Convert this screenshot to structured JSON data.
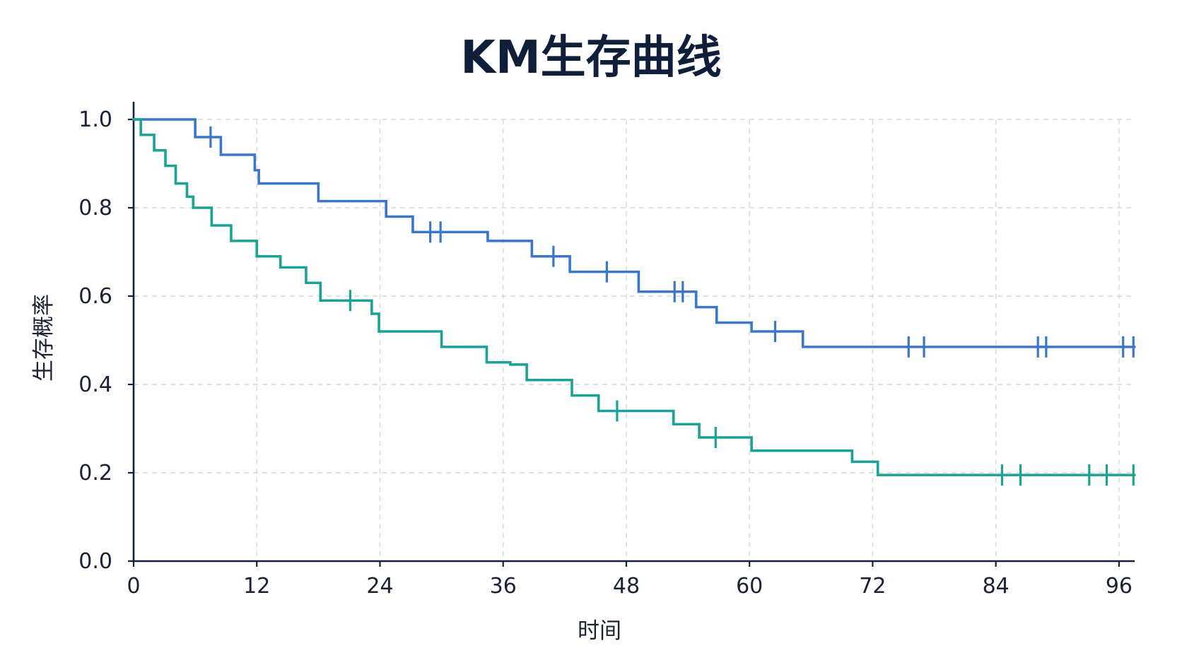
{
  "colors": {
    "title": "#0f1f3a",
    "axis": "#14213d",
    "grid": "#d7d9dd",
    "series_blue": "#3a76c9",
    "series_teal": "#1aa394"
  },
  "chart_data": {
    "type": "line",
    "title": "KM生存曲线",
    "xlabel": "时间",
    "ylabel": "生存概率",
    "xlim": [
      0,
      97.5
    ],
    "ylim": [
      0,
      1.0
    ],
    "x_ticks": [
      "0",
      "12",
      "24",
      "36",
      "48",
      "60",
      "72",
      "84",
      "96"
    ],
    "y_ticks": [
      "0.0",
      "0.2",
      "0.4",
      "0.6",
      "0.8",
      "1.0"
    ],
    "grid": true,
    "legend": "none",
    "series": [
      {
        "color": "#3a76c9",
        "steps": [
          [
            0,
            1.0
          ],
          [
            6,
            0.96
          ],
          [
            8.5,
            0.92
          ],
          [
            11.8,
            0.885
          ],
          [
            12.2,
            0.855
          ],
          [
            18,
            0.815
          ],
          [
            24.6,
            0.78
          ],
          [
            27.2,
            0.745
          ],
          [
            34.5,
            0.725
          ],
          [
            38.8,
            0.69
          ],
          [
            42.5,
            0.655
          ],
          [
            49.2,
            0.61
          ],
          [
            54.8,
            0.575
          ],
          [
            56.8,
            0.54
          ],
          [
            60.2,
            0.52
          ],
          [
            65.2,
            0.485
          ],
          [
            97.5,
            0.485
          ]
        ],
        "censored_x": [
          7.5,
          28.9,
          29.9,
          40.9,
          46.1,
          52.7,
          53.5,
          62.5,
          75.5,
          77.0,
          88.1,
          88.9,
          96.4,
          97.4
        ]
      },
      {
        "color": "#1aa394",
        "steps": [
          [
            0,
            1.0
          ],
          [
            0.7,
            0.965
          ],
          [
            2,
            0.93
          ],
          [
            3.1,
            0.895
          ],
          [
            4.1,
            0.855
          ],
          [
            5.2,
            0.825
          ],
          [
            5.8,
            0.8
          ],
          [
            7.6,
            0.76
          ],
          [
            9.5,
            0.725
          ],
          [
            12,
            0.69
          ],
          [
            14.3,
            0.665
          ],
          [
            16.8,
            0.63
          ],
          [
            18.2,
            0.59
          ],
          [
            23.2,
            0.56
          ],
          [
            23.9,
            0.52
          ],
          [
            30,
            0.485
          ],
          [
            34.4,
            0.45
          ],
          [
            36.7,
            0.445
          ],
          [
            38.3,
            0.41
          ],
          [
            42.7,
            0.375
          ],
          [
            45.3,
            0.34
          ],
          [
            52.6,
            0.31
          ],
          [
            55.1,
            0.28
          ],
          [
            60.2,
            0.25
          ],
          [
            70,
            0.225
          ],
          [
            72.5,
            0.195
          ],
          [
            97.5,
            0.195
          ]
        ],
        "censored_x": [
          21.1,
          47.1,
          56.7,
          84.6,
          86.4,
          93.1,
          94.8,
          97.4
        ]
      }
    ]
  }
}
